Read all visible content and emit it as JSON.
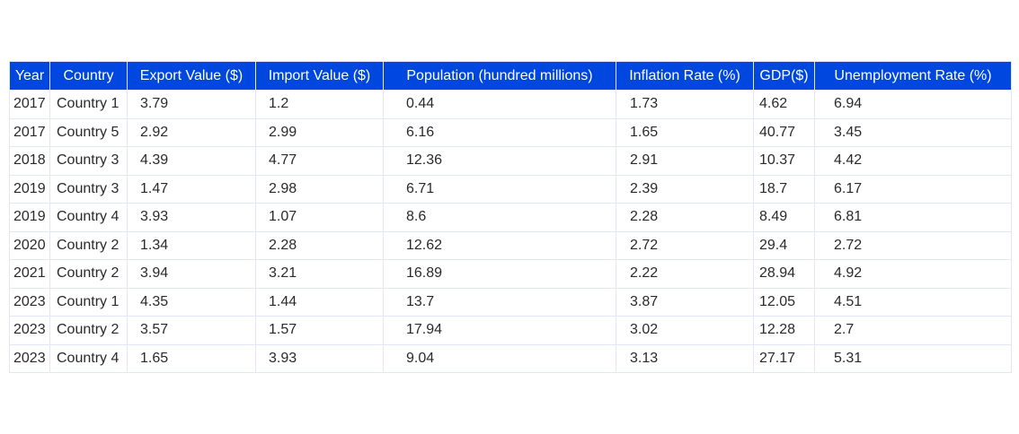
{
  "chart_data": {
    "type": "table",
    "columns": [
      "Year",
      "Country",
      "Export Value ($)",
      "Import Value ($)",
      "Population (hundred millions)",
      "Inflation Rate (%)",
      "GDP($)",
      "Unemployment Rate (%)"
    ],
    "rows": [
      [
        "2017",
        "Country 1",
        "3.79",
        "1.2",
        "0.44",
        "1.73",
        "4.62",
        "6.94"
      ],
      [
        "2017",
        "Country 5",
        "2.92",
        "2.99",
        "6.16",
        "1.65",
        "40.77",
        "3.45"
      ],
      [
        "2018",
        "Country 3",
        "4.39",
        "4.77",
        "12.36",
        "2.91",
        "10.37",
        "4.42"
      ],
      [
        "2019",
        "Country 3",
        "1.47",
        "2.98",
        "6.71",
        "2.39",
        "18.7",
        "6.17"
      ],
      [
        "2019",
        "Country 4",
        "3.93",
        "1.07",
        "8.6",
        "2.28",
        "8.49",
        "6.81"
      ],
      [
        "2020",
        "Country 2",
        "1.34",
        "2.28",
        "12.62",
        "2.72",
        "29.4",
        "2.72"
      ],
      [
        "2021",
        "Country 2",
        "3.94",
        "3.21",
        "16.89",
        "2.22",
        "28.94",
        "4.92"
      ],
      [
        "2023",
        "Country 1",
        "4.35",
        "1.44",
        "13.7",
        "3.87",
        "12.05",
        "4.51"
      ],
      [
        "2023",
        "Country 2",
        "3.57",
        "1.57",
        "17.94",
        "3.02",
        "12.28",
        "2.7"
      ],
      [
        "2023",
        "Country 4",
        "1.65",
        "3.93",
        "9.04",
        "3.13",
        "27.17",
        "5.31"
      ]
    ],
    "header_color": "#0047e0",
    "header_text_color": "#ffffff",
    "grid_color": "#e3e6f7"
  }
}
